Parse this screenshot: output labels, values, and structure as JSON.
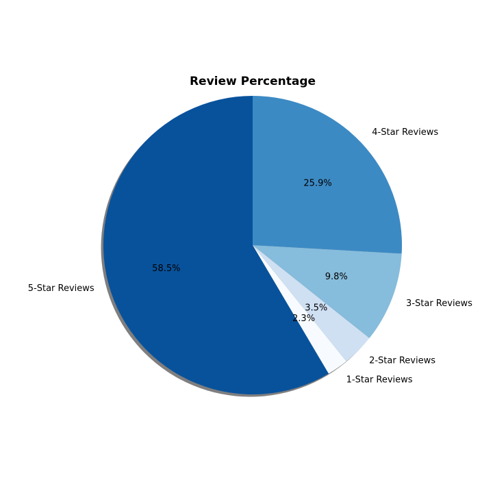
{
  "chart_data": {
    "type": "pie",
    "title": "Review Percentage",
    "start_angle_deg": 90,
    "direction": "counterclockwise",
    "shadow": true,
    "slices": [
      {
        "label": "5-Star Reviews",
        "value": 58.5,
        "pct_text": "58.5%",
        "color": "#08529c"
      },
      {
        "label": "1-Star Reviews",
        "value": 2.3,
        "pct_text": "2.3%",
        "color": "#f7fbff"
      },
      {
        "label": "2-Star Reviews",
        "value": 3.5,
        "pct_text": "3.5%",
        "color": "#cfe0f3"
      },
      {
        "label": "3-Star Reviews",
        "value": 9.8,
        "pct_text": "9.8%",
        "color": "#86bcdc"
      },
      {
        "label": "4-Star Reviews",
        "value": 25.9,
        "pct_text": "25.9%",
        "color": "#3c8ac4"
      }
    ]
  }
}
